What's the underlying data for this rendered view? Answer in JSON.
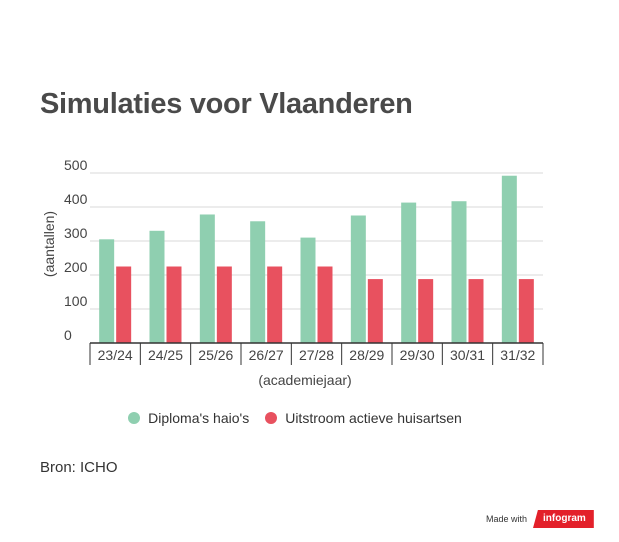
{
  "title": "Simulaties voor Vlaanderen",
  "colors": {
    "series1": "#8fcfb0",
    "series2": "#e8515f",
    "axis": "#333333",
    "grid": "#d9d9d9"
  },
  "legend": {
    "series1": "Diploma's haio's",
    "series2": "Uitstroom actieve huisartsen"
  },
  "source": "Bron: ICHO",
  "footer": {
    "made_with": "Made with",
    "brand": "infogram"
  },
  "chart_data": {
    "type": "bar",
    "ylabel": "(aantallen)",
    "xlabel": "(academiejaar)",
    "ylim": [
      0,
      500
    ],
    "yticks": [
      0,
      100,
      200,
      300,
      400,
      500
    ],
    "grid": true,
    "legend_position": "bottom",
    "categories": [
      "23/24",
      "24/25",
      "25/26",
      "26/27",
      "27/28",
      "28/29",
      "29/30",
      "30/31",
      "31/32"
    ],
    "series": [
      {
        "name": "Diploma's haio's",
        "values": [
          305,
          330,
          378,
          358,
          310,
          375,
          413,
          417,
          492
        ]
      },
      {
        "name": "Uitstroom actieve huisartsen",
        "values": [
          225,
          225,
          225,
          225,
          225,
          188,
          188,
          188,
          188
        ]
      }
    ]
  }
}
